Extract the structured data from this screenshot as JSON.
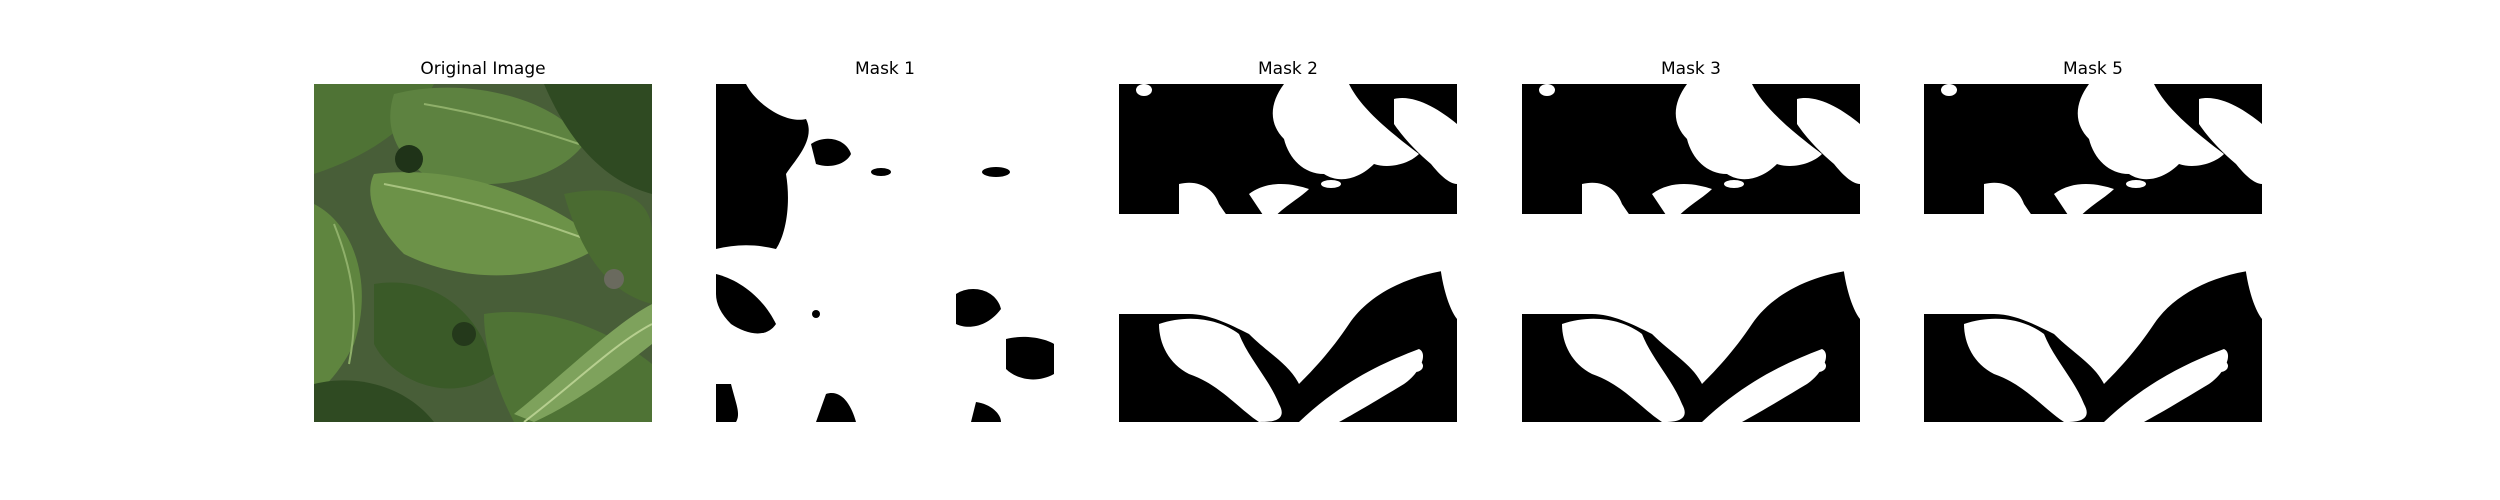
{
  "figure": {
    "background": "#ffffff",
    "panels": [
      {
        "title": "Original Image",
        "kind": "photo"
      },
      {
        "title": "Mask 1",
        "kind": "binary-mask"
      },
      {
        "title": "Mask 2",
        "kind": "binary-mask"
      },
      {
        "title": "Mask 3",
        "kind": "binary-mask"
      },
      {
        "title": "Mask 5",
        "kind": "binary-mask"
      }
    ]
  },
  "colors": {
    "mask_foreground": "#ffffff",
    "mask_background": "#000000",
    "leaf_dark": "#2f4a22",
    "leaf_mid": "#4f7335",
    "leaf_light": "#7ea25c",
    "soil": "#6a6a5e"
  }
}
